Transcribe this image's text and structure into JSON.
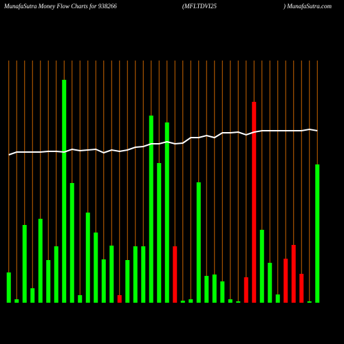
{
  "chart_data": {
    "type": "bar",
    "title": "MunafaSutra  Money Flow  Charts for 938266",
    "subtitle": "(MFLTDVI25",
    "source": ") MunafaSutra.com",
    "values": [
      44,
      5,
      113,
      21,
      122,
      62,
      82,
      324,
      174,
      11,
      131,
      102,
      63,
      83,
      11,
      62,
      82,
      82,
      272,
      203,
      262,
      82,
      3,
      5,
      175,
      39,
      41,
      31,
      5,
      2,
      37,
      292,
      106,
      58,
      12,
      64,
      84,
      42,
      2,
      201
    ],
    "colors": [
      "#00ff00",
      "#00ff00",
      "#00ff00",
      "#00ff00",
      "#00ff00",
      "#00ff00",
      "#00ff00",
      "#00ff00",
      "#00ff00",
      "#00ff00",
      "#00ff00",
      "#00ff00",
      "#00ff00",
      "#00ff00",
      "#ff0000",
      "#00ff00",
      "#00ff00",
      "#00ff00",
      "#00ff00",
      "#00ff00",
      "#00ff00",
      "#ff0000",
      "#00ff00",
      "#00ff00",
      "#00ff00",
      "#00ff00",
      "#00ff00",
      "#00ff00",
      "#00ff00",
      "#00ff00",
      "#ff0000",
      "#ff0000",
      "#00ff00",
      "#00ff00",
      "#00ff00",
      "#ff0000",
      "#ff0000",
      "#ff0000",
      "#00ff00",
      "#00ff00"
    ],
    "line_values": [
      215,
      219,
      219,
      219,
      219,
      220,
      220,
      219,
      223,
      221,
      222,
      223,
      218,
      222,
      220,
      222,
      226,
      227,
      231,
      231,
      234,
      231,
      232,
      240,
      240,
      243,
      240,
      247,
      247,
      248,
      244,
      248,
      250,
      250,
      250,
      250,
      250,
      250,
      252,
      250
    ],
    "line_color": "#ffffff",
    "gridline_color": "#cc6600",
    "ylim": [
      0,
      330
    ]
  }
}
